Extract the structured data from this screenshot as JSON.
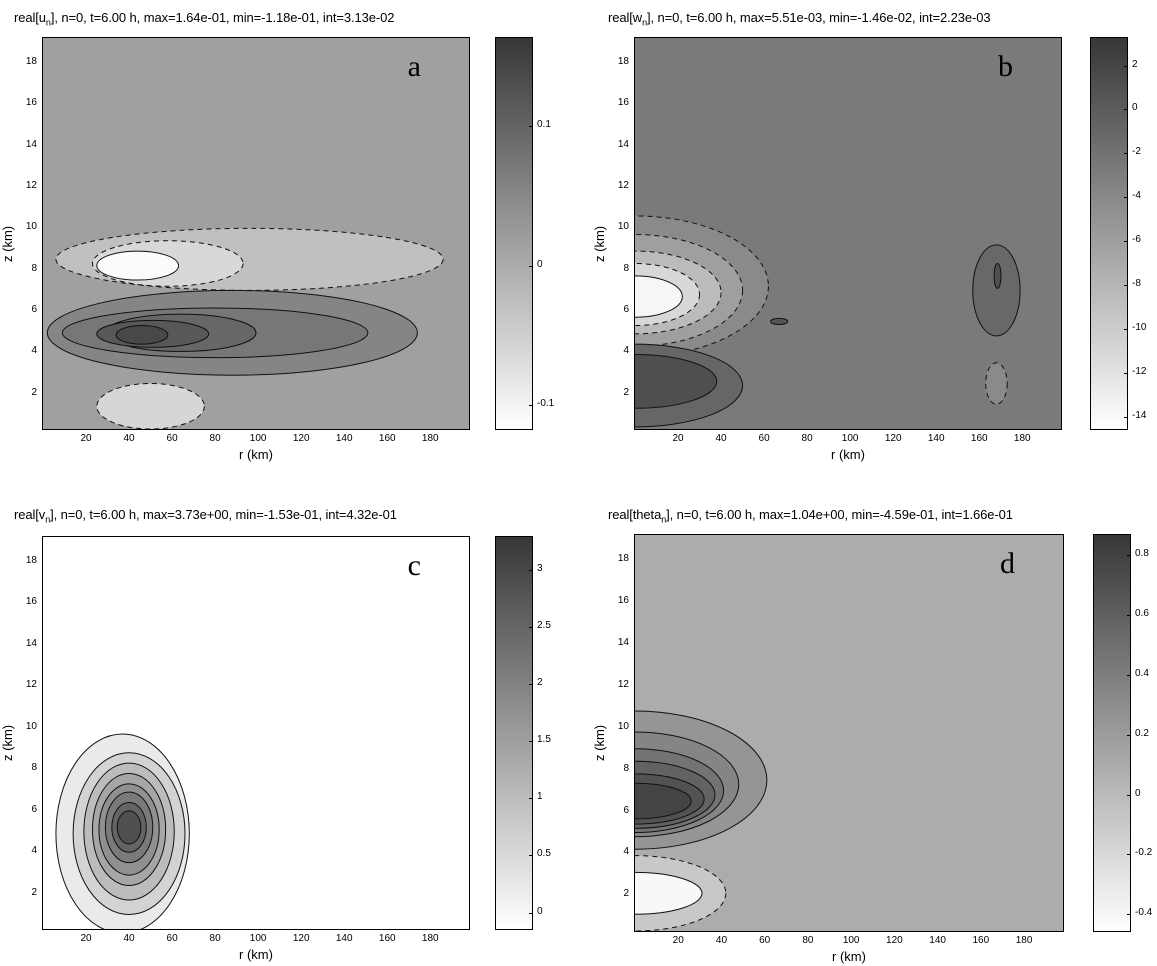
{
  "chart_data": [
    {
      "type": "contour",
      "panel_letter": "a",
      "title_prefix": "real[u",
      "title_sub": "n",
      "title_suffix": "], n=0, t=6.00 h, max=1.64e-01, min=-1.18e-01, int=3.13e-02",
      "xlabel": "r (km)",
      "ylabel": "z (km)",
      "xlim": [
        0,
        198
      ],
      "ylim": [
        0.3,
        19.2
      ],
      "xticks": [
        20,
        40,
        60,
        80,
        100,
        120,
        140,
        160,
        180
      ],
      "yticks": [
        2,
        4,
        6,
        8,
        10,
        12,
        14,
        16,
        18
      ],
      "background": "#a0a0a0",
      "colorbar": {
        "min": -0.118,
        "max": 0.164,
        "ticks": [
          -0.1,
          0,
          0.1
        ],
        "tick_labels": [
          "-0.1",
          "0",
          "0.1"
        ]
      },
      "blobs": [
        {
          "cx": 96,
          "cy": 8.5,
          "rx": 90,
          "ry": 1.5,
          "fill": "#c0c0c0",
          "dashed": true
        },
        {
          "cx": 58,
          "cy": 8.3,
          "rx": 35,
          "ry": 1.1,
          "fill": "#d8d8d8",
          "dashed": true
        },
        {
          "cx": 44,
          "cy": 8.2,
          "rx": 19,
          "ry": 0.7,
          "fill": "#fbfbfb",
          "dashed": false
        },
        {
          "cx": 88,
          "cy": 4.95,
          "rx": 86,
          "ry": 2.05,
          "fill": "#858585",
          "dashed": false
        },
        {
          "cx": 80,
          "cy": 4.95,
          "rx": 71,
          "ry": 1.2,
          "fill": "#777777",
          "dashed": false
        },
        {
          "cx": 64,
          "cy": 4.95,
          "rx": 35,
          "ry": 0.9,
          "fill": "#676767",
          "dashed": false
        },
        {
          "cx": 51,
          "cy": 4.9,
          "rx": 26,
          "ry": 0.65,
          "fill": "#585858",
          "dashed": false
        },
        {
          "cx": 46,
          "cy": 4.85,
          "rx": 12,
          "ry": 0.45,
          "fill": "#484848",
          "dashed": false
        },
        {
          "cx": 50,
          "cy": 1.4,
          "rx": 25,
          "ry": 1.1,
          "fill": "#d6d6d6",
          "dashed": true
        }
      ]
    },
    {
      "type": "contour",
      "panel_letter": "b",
      "title_prefix": "real[w",
      "title_sub": "n",
      "title_suffix": "], n=0, t=6.00 h, max=5.51e-03, min=-1.46e-02, int=2.23e-03",
      "xlabel": "r (km)",
      "ylabel": "z (km)",
      "xlim": [
        0,
        198
      ],
      "ylim": [
        0.3,
        19.2
      ],
      "xticks": [
        20,
        40,
        60,
        80,
        100,
        120,
        140,
        160,
        180
      ],
      "yticks": [
        2,
        4,
        6,
        8,
        10,
        12,
        14,
        16,
        18
      ],
      "background": "#7a7a7a",
      "colorbar": {
        "min": -14.6,
        "max": 3.3,
        "ticks": [
          -14,
          -12,
          -10,
          -8,
          -6,
          -4,
          -2,
          0,
          2
        ],
        "tick_labels": [
          "-14",
          "-12",
          "-10",
          "-8",
          "-6",
          "-4",
          "-2",
          "0",
          "2"
        ]
      },
      "blobs": [
        {
          "cx": 0,
          "cy": 7.2,
          "rx": 62,
          "ry": 3.4,
          "fill": "#8a8a8a",
          "dashed": true
        },
        {
          "cx": 0,
          "cy": 7.0,
          "rx": 50,
          "ry": 2.7,
          "fill": "#9f9f9f",
          "dashed": true
        },
        {
          "cx": 0,
          "cy": 6.9,
          "rx": 40,
          "ry": 2.0,
          "fill": "#bbbbbb",
          "dashed": true
        },
        {
          "cx": 0,
          "cy": 6.8,
          "rx": 30,
          "ry": 1.5,
          "fill": "#d8d8d8",
          "dashed": true
        },
        {
          "cx": 0,
          "cy": 6.7,
          "rx": 22,
          "ry": 1.0,
          "fill": "#f6f6f6",
          "dashed": false
        },
        {
          "cx": 0,
          "cy": 2.4,
          "rx": 50,
          "ry": 2.0,
          "fill": "#666666",
          "dashed": false
        },
        {
          "cx": 0,
          "cy": 2.6,
          "rx": 38,
          "ry": 1.3,
          "fill": "#4f4f4f",
          "dashed": false
        },
        {
          "cx": 67,
          "cy": 5.5,
          "rx": 4,
          "ry": 0.15,
          "fill": "#555555",
          "dashed": false
        },
        {
          "cx": 168,
          "cy": 7.0,
          "rx": 11,
          "ry": 2.2,
          "fill": "#686868",
          "dashed": false
        },
        {
          "cx": 168.5,
          "cy": 7.7,
          "rx": 1.6,
          "ry": 0.6,
          "fill": "#4f4f4f",
          "dashed": false
        },
        {
          "cx": 168,
          "cy": 2.5,
          "rx": 5,
          "ry": 1.0,
          "fill": "#8a8a8a",
          "dashed": true
        }
      ]
    },
    {
      "type": "contour",
      "panel_letter": "c",
      "title_prefix": "real[v",
      "title_sub": "n",
      "title_suffix": "], n=0, t=6.00 h, max=3.73e+00, min=-1.53e-01, int=4.32e-01",
      "xlabel": "r (km)",
      "ylabel": "z (km)",
      "xlim": [
        0,
        198
      ],
      "ylim": [
        0.3,
        19.2
      ],
      "xticks": [
        20,
        40,
        60,
        80,
        100,
        120,
        140,
        160,
        180
      ],
      "yticks": [
        2,
        4,
        6,
        8,
        10,
        12,
        14,
        16,
        18
      ],
      "background": "#ffffff",
      "colorbar": {
        "min": -0.153,
        "max": 3.3,
        "ticks": [
          0,
          0.5,
          1,
          1.5,
          2,
          2.5,
          3
        ],
        "tick_labels": [
          "0",
          "0.5",
          "1",
          "1.5",
          "2",
          "2.5",
          "3"
        ]
      },
      "blobs": [
        {
          "cx": 37,
          "cy": 4.9,
          "rx": 31,
          "ry": 4.8,
          "fill": "#eaeaea",
          "dashed": false
        },
        {
          "cx": 40,
          "cy": 4.9,
          "rx": 26,
          "ry": 3.9,
          "fill": "#d3d3d3",
          "dashed": false
        },
        {
          "cx": 40,
          "cy": 5.0,
          "rx": 21,
          "ry": 3.3,
          "fill": "#bcbcbc",
          "dashed": false
        },
        {
          "cx": 40,
          "cy": 5.1,
          "rx": 17,
          "ry": 2.7,
          "fill": "#a6a6a6",
          "dashed": false
        },
        {
          "cx": 40,
          "cy": 5.1,
          "rx": 14,
          "ry": 2.2,
          "fill": "#909090",
          "dashed": false
        },
        {
          "cx": 40,
          "cy": 5.2,
          "rx": 11,
          "ry": 1.7,
          "fill": "#7a7a7a",
          "dashed": false
        },
        {
          "cx": 40,
          "cy": 5.2,
          "rx": 8,
          "ry": 1.2,
          "fill": "#646464",
          "dashed": false
        },
        {
          "cx": 40,
          "cy": 5.2,
          "rx": 5.5,
          "ry": 0.8,
          "fill": "#4f4f4f",
          "dashed": false
        }
      ]
    },
    {
      "type": "contour",
      "panel_letter": "d",
      "title_prefix": "real[theta",
      "title_sub": "n",
      "title_suffix": "], n=0, t=6.00 h, max=1.04e+00, min=-4.59e-01, int=1.66e-01",
      "xlabel": "r (km)",
      "ylabel": "z (km)",
      "xlim": [
        0,
        198
      ],
      "ylim": [
        0.3,
        19.2
      ],
      "xticks": [
        20,
        40,
        60,
        80,
        100,
        120,
        140,
        160,
        180
      ],
      "yticks": [
        2,
        4,
        6,
        8,
        10,
        12,
        14,
        16,
        18
      ],
      "background": "#acacac",
      "colorbar": {
        "min": -0.459,
        "max": 0.87,
        "ticks": [
          -0.4,
          -0.2,
          0,
          0.2,
          0.4,
          0.6,
          0.8
        ],
        "tick_labels": [
          "-0.4",
          "-0.2",
          "0",
          "0.2",
          "0.4",
          "0.6",
          "0.8"
        ]
      },
      "blobs": [
        {
          "cx": 0,
          "cy": 7.5,
          "rx": 61,
          "ry": 3.3,
          "fill": "#959595",
          "dashed": false
        },
        {
          "cx": 0,
          "cy": 7.3,
          "rx": 48,
          "ry": 2.5,
          "fill": "#858585",
          "dashed": false
        },
        {
          "cx": 0,
          "cy": 7.0,
          "rx": 41,
          "ry": 2.0,
          "fill": "#737373",
          "dashed": false
        },
        {
          "cx": 0,
          "cy": 6.8,
          "rx": 37,
          "ry": 1.6,
          "fill": "#626262",
          "dashed": false
        },
        {
          "cx": 0,
          "cy": 6.6,
          "rx": 32,
          "ry": 1.2,
          "fill": "#525252",
          "dashed": false
        },
        {
          "cx": 0,
          "cy": 6.5,
          "rx": 26,
          "ry": 0.85,
          "fill": "#444444",
          "dashed": false
        },
        {
          "cx": 0,
          "cy": 2.1,
          "rx": 42,
          "ry": 1.8,
          "fill": "#c8c8c8",
          "dashed": true
        },
        {
          "cx": 0,
          "cy": 2.1,
          "rx": 31,
          "ry": 1.0,
          "fill": "#f8f8f8",
          "dashed": false
        }
      ]
    }
  ]
}
